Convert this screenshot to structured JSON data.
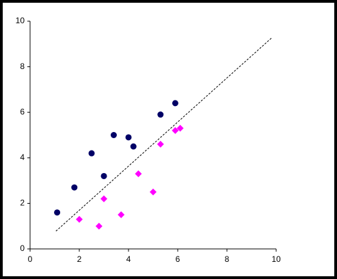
{
  "chart_data": {
    "type": "scatter",
    "series": [
      {
        "color": "#000066",
        "marker": "circle",
        "x": [
          1.1,
          1.8,
          2.5,
          3.0,
          3.4,
          4.0,
          4.2,
          5.3,
          5.9
        ],
        "values": [
          1.6,
          2.7,
          4.2,
          3.2,
          5.0,
          4.9,
          4.5,
          5.9,
          6.4
        ]
      },
      {
        "color": "#ff00ff",
        "marker": "diamond",
        "x": [
          2.0,
          2.8,
          3.0,
          3.7,
          4.4,
          5.0,
          5.3,
          5.9,
          6.1
        ],
        "values": [
          1.3,
          1.0,
          2.2,
          1.5,
          3.3,
          2.5,
          4.6,
          5.2,
          5.3
        ]
      },
      {
        "color": "#000000",
        "marker": "none",
        "line": "dashed",
        "x": [
          1.05,
          9.83
        ],
        "values": [
          0.78,
          9.28
        ]
      }
    ],
    "xlim": [
      0,
      10
    ],
    "xticks": [
      0,
      2,
      4,
      6,
      8,
      10
    ],
    "ylim": [
      0,
      10
    ],
    "yticks": [
      0,
      2,
      4,
      6,
      8,
      10
    ],
    "grid": false
  }
}
